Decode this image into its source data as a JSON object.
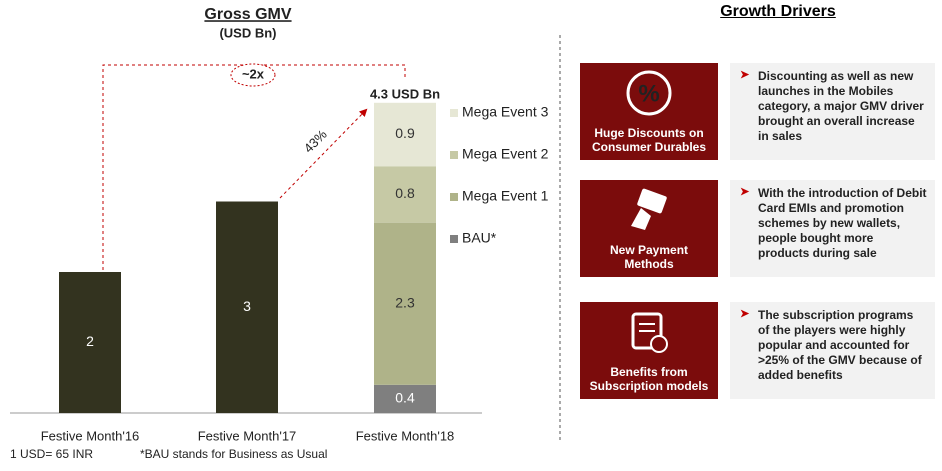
{
  "chart_data": {
    "type": "stacked_bar",
    "title": "Gross GMV",
    "subtitle": "(USD Bn)",
    "categories": [
      "Festive Month'16",
      "Festive Month'17",
      "Festive Month'18"
    ],
    "series": [
      {
        "color": "#33331f",
        "label_color": "#ffffff",
        "values": [
          2,
          3,
          null
        ]
      },
      {
        "name": "BAU*",
        "color": "#7f7f7f",
        "label_color": "#ffffff",
        "values": [
          null,
          null,
          0.4
        ]
      },
      {
        "name": "Mega Event 1",
        "color": "#afb389",
        "label_color": "#333333",
        "values": [
          null,
          null,
          2.3
        ]
      },
      {
        "name": "Mega Event 2",
        "color": "#c6c9a5",
        "label_color": "#333333",
        "values": [
          null,
          null,
          0.8
        ]
      },
      {
        "name": "Mega Event 3",
        "color": "#e6e7d5",
        "label_color": "#333333",
        "values": [
          null,
          null,
          0.9
        ]
      }
    ],
    "annotations": {
      "total": "4.3 USD Bn",
      "growth": "43%",
      "multiple": "~2x"
    },
    "footnotes": [
      "1 USD= 65 INR",
      "*BAU stands for Business as Usual"
    ]
  },
  "drivers": {
    "title": "Growth Drivers",
    "items": [
      {
        "label": "Huge Discounts  on Consumer Durables",
        "text": "Discounting as well as new launches in the Mobiles category, a major GMV driver brought an overall increase in sales"
      },
      {
        "label": "New Payment Methods",
        "text": "With the introduction of Debit Card EMIs and promotion schemes by new wallets, people bought more products during sale"
      },
      {
        "label": "Benefits from Subscription  models",
        "text": "The subscription programs of the players were highly popular and accounted for >25% of the GMV because of added benefits"
      }
    ]
  }
}
